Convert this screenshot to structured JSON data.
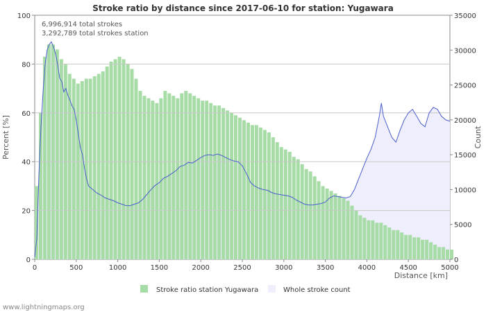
{
  "chart_data": {
    "type": "bar",
    "title": "Stroke ratio by distance since 2017-06-10 for station: Yugawara",
    "info_lines": [
      "6,996,914 total strokes",
      "3,292,789 total strokes station"
    ],
    "xlabel": "Distance   [km]",
    "ylabel_left": "Percent   [%]",
    "ylabel_right": "Count",
    "xlim": [
      0,
      5000
    ],
    "ylim_left": [
      0,
      100
    ],
    "ylim_right": [
      0,
      35000
    ],
    "x_ticks": [
      0,
      500,
      1000,
      1500,
      2000,
      2500,
      3000,
      3500,
      4000,
      4500,
      5000
    ],
    "y_left_ticks": [
      0,
      20,
      40,
      60,
      80,
      100
    ],
    "y_right_ticks": [
      0,
      5000,
      10000,
      15000,
      20000,
      25000,
      30000,
      35000
    ],
    "grid": true,
    "series": [
      {
        "name": "Stroke ratio station Yugawara",
        "type": "bar",
        "axis": "left",
        "color": "#a7dca7",
        "points": [
          [
            0,
            30
          ],
          [
            50,
            60
          ],
          [
            100,
            83
          ],
          [
            150,
            88
          ],
          [
            200,
            88
          ],
          [
            250,
            86
          ],
          [
            300,
            82
          ],
          [
            350,
            80
          ],
          [
            400,
            76
          ],
          [
            450,
            74
          ],
          [
            500,
            72
          ],
          [
            550,
            73
          ],
          [
            600,
            74
          ],
          [
            650,
            74
          ],
          [
            700,
            75
          ],
          [
            750,
            76
          ],
          [
            800,
            77
          ],
          [
            850,
            79
          ],
          [
            900,
            81
          ],
          [
            950,
            82
          ],
          [
            1000,
            83
          ],
          [
            1050,
            82
          ],
          [
            1100,
            80
          ],
          [
            1150,
            78
          ],
          [
            1200,
            74
          ],
          [
            1250,
            69
          ],
          [
            1300,
            67
          ],
          [
            1350,
            66
          ],
          [
            1400,
            65
          ],
          [
            1450,
            64
          ],
          [
            1500,
            66
          ],
          [
            1550,
            69
          ],
          [
            1600,
            68
          ],
          [
            1650,
            67
          ],
          [
            1700,
            66
          ],
          [
            1750,
            68
          ],
          [
            1800,
            69
          ],
          [
            1850,
            68
          ],
          [
            1900,
            67
          ],
          [
            1950,
            66
          ],
          [
            2000,
            65
          ],
          [
            2050,
            65
          ],
          [
            2100,
            64
          ],
          [
            2150,
            63
          ],
          [
            2200,
            63
          ],
          [
            2250,
            62
          ],
          [
            2300,
            61
          ],
          [
            2350,
            60
          ],
          [
            2400,
            59
          ],
          [
            2450,
            58
          ],
          [
            2500,
            57
          ],
          [
            2550,
            56
          ],
          [
            2600,
            55
          ],
          [
            2650,
            55
          ],
          [
            2700,
            54
          ],
          [
            2750,
            53
          ],
          [
            2800,
            52
          ],
          [
            2850,
            50
          ],
          [
            2900,
            48
          ],
          [
            2950,
            46
          ],
          [
            3000,
            45
          ],
          [
            3050,
            44
          ],
          [
            3100,
            42
          ],
          [
            3150,
            41
          ],
          [
            3200,
            39
          ],
          [
            3250,
            37
          ],
          [
            3300,
            36
          ],
          [
            3350,
            34
          ],
          [
            3400,
            32
          ],
          [
            3450,
            30
          ],
          [
            3500,
            29
          ],
          [
            3550,
            28
          ],
          [
            3600,
            27
          ],
          [
            3650,
            26
          ],
          [
            3700,
            25
          ],
          [
            3750,
            24
          ],
          [
            3800,
            22
          ],
          [
            3850,
            20
          ],
          [
            3900,
            18
          ],
          [
            3950,
            17
          ],
          [
            4000,
            16
          ],
          [
            4050,
            16
          ],
          [
            4100,
            15
          ],
          [
            4150,
            15
          ],
          [
            4200,
            14
          ],
          [
            4250,
            13
          ],
          [
            4300,
            12
          ],
          [
            4350,
            12
          ],
          [
            4400,
            11
          ],
          [
            4450,
            10
          ],
          [
            4500,
            10
          ],
          [
            4550,
            9
          ],
          [
            4600,
            9
          ],
          [
            4650,
            8
          ],
          [
            4700,
            8
          ],
          [
            4750,
            7
          ],
          [
            4800,
            6
          ],
          [
            4850,
            5
          ],
          [
            4900,
            5
          ],
          [
            4950,
            4
          ],
          [
            5000,
            4
          ]
        ]
      },
      {
        "name": "Whole stroke count",
        "type": "area",
        "axis": "right",
        "color": "#eeeefc",
        "stroke": "#4a5dcc",
        "points": [
          [
            0,
            300
          ],
          [
            25,
            3000
          ],
          [
            50,
            12000
          ],
          [
            75,
            19000
          ],
          [
            100,
            24000
          ],
          [
            125,
            28000
          ],
          [
            150,
            30000
          ],
          [
            175,
            30800
          ],
          [
            200,
            31200
          ],
          [
            225,
            30500
          ],
          [
            250,
            29500
          ],
          [
            275,
            28000
          ],
          [
            300,
            26000
          ],
          [
            325,
            25500
          ],
          [
            350,
            24000
          ],
          [
            375,
            24500
          ],
          [
            400,
            23500
          ],
          [
            425,
            22800
          ],
          [
            450,
            22000
          ],
          [
            475,
            21500
          ],
          [
            500,
            20000
          ],
          [
            525,
            18000
          ],
          [
            550,
            16000
          ],
          [
            575,
            15000
          ],
          [
            600,
            13000
          ],
          [
            625,
            11500
          ],
          [
            650,
            10500
          ],
          [
            700,
            10000
          ],
          [
            750,
            9500
          ],
          [
            800,
            9200
          ],
          [
            850,
            8800
          ],
          [
            900,
            8600
          ],
          [
            950,
            8400
          ],
          [
            1000,
            8100
          ],
          [
            1050,
            7900
          ],
          [
            1100,
            7700
          ],
          [
            1150,
            7700
          ],
          [
            1200,
            7900
          ],
          [
            1250,
            8100
          ],
          [
            1300,
            8600
          ],
          [
            1350,
            9300
          ],
          [
            1400,
            10000
          ],
          [
            1450,
            10600
          ],
          [
            1500,
            11000
          ],
          [
            1550,
            11600
          ],
          [
            1600,
            11900
          ],
          [
            1650,
            12300
          ],
          [
            1700,
            12700
          ],
          [
            1750,
            13300
          ],
          [
            1800,
            13500
          ],
          [
            1850,
            13900
          ],
          [
            1900,
            13800
          ],
          [
            1950,
            14200
          ],
          [
            2000,
            14600
          ],
          [
            2050,
            14900
          ],
          [
            2100,
            15000
          ],
          [
            2150,
            14900
          ],
          [
            2200,
            15100
          ],
          [
            2250,
            14900
          ],
          [
            2300,
            14600
          ],
          [
            2350,
            14300
          ],
          [
            2400,
            14100
          ],
          [
            2450,
            14000
          ],
          [
            2500,
            13400
          ],
          [
            2550,
            12300
          ],
          [
            2600,
            11000
          ],
          [
            2650,
            10500
          ],
          [
            2700,
            10200
          ],
          [
            2750,
            10000
          ],
          [
            2800,
            9900
          ],
          [
            2850,
            9600
          ],
          [
            2900,
            9400
          ],
          [
            2950,
            9300
          ],
          [
            3000,
            9200
          ],
          [
            3050,
            9100
          ],
          [
            3100,
            8900
          ],
          [
            3150,
            8500
          ],
          [
            3200,
            8200
          ],
          [
            3250,
            7900
          ],
          [
            3300,
            7800
          ],
          [
            3350,
            7800
          ],
          [
            3400,
            7900
          ],
          [
            3450,
            8000
          ],
          [
            3500,
            8200
          ],
          [
            3550,
            8800
          ],
          [
            3600,
            9100
          ],
          [
            3650,
            9000
          ],
          [
            3700,
            8900
          ],
          [
            3750,
            8800
          ],
          [
            3800,
            9000
          ],
          [
            3850,
            10000
          ],
          [
            3900,
            11500
          ],
          [
            3950,
            13000
          ],
          [
            4000,
            14500
          ],
          [
            4050,
            15800
          ],
          [
            4100,
            17500
          ],
          [
            4150,
            20500
          ],
          [
            4175,
            22400
          ],
          [
            4200,
            20500
          ],
          [
            4250,
            19000
          ],
          [
            4300,
            17500
          ],
          [
            4350,
            16800
          ],
          [
            4400,
            18500
          ],
          [
            4450,
            20000
          ],
          [
            4500,
            21000
          ],
          [
            4550,
            21500
          ],
          [
            4600,
            20500
          ],
          [
            4650,
            19500
          ],
          [
            4700,
            19000
          ],
          [
            4750,
            21000
          ],
          [
            4800,
            21800
          ],
          [
            4850,
            21500
          ],
          [
            4900,
            20500
          ],
          [
            4950,
            20000
          ],
          [
            5000,
            19800
          ]
        ]
      }
    ],
    "legend": [
      "Stroke ratio station Yugawara",
      "Whole stroke count"
    ],
    "legend_position": "bottom-center"
  },
  "footer": "www.lightningmaps.org",
  "colors": {
    "bars": "#a7dca7",
    "area_fill": "#eeeefc",
    "area_line": "#4a5dcc",
    "grid": "#c8c8c8",
    "axis": "#888888"
  }
}
